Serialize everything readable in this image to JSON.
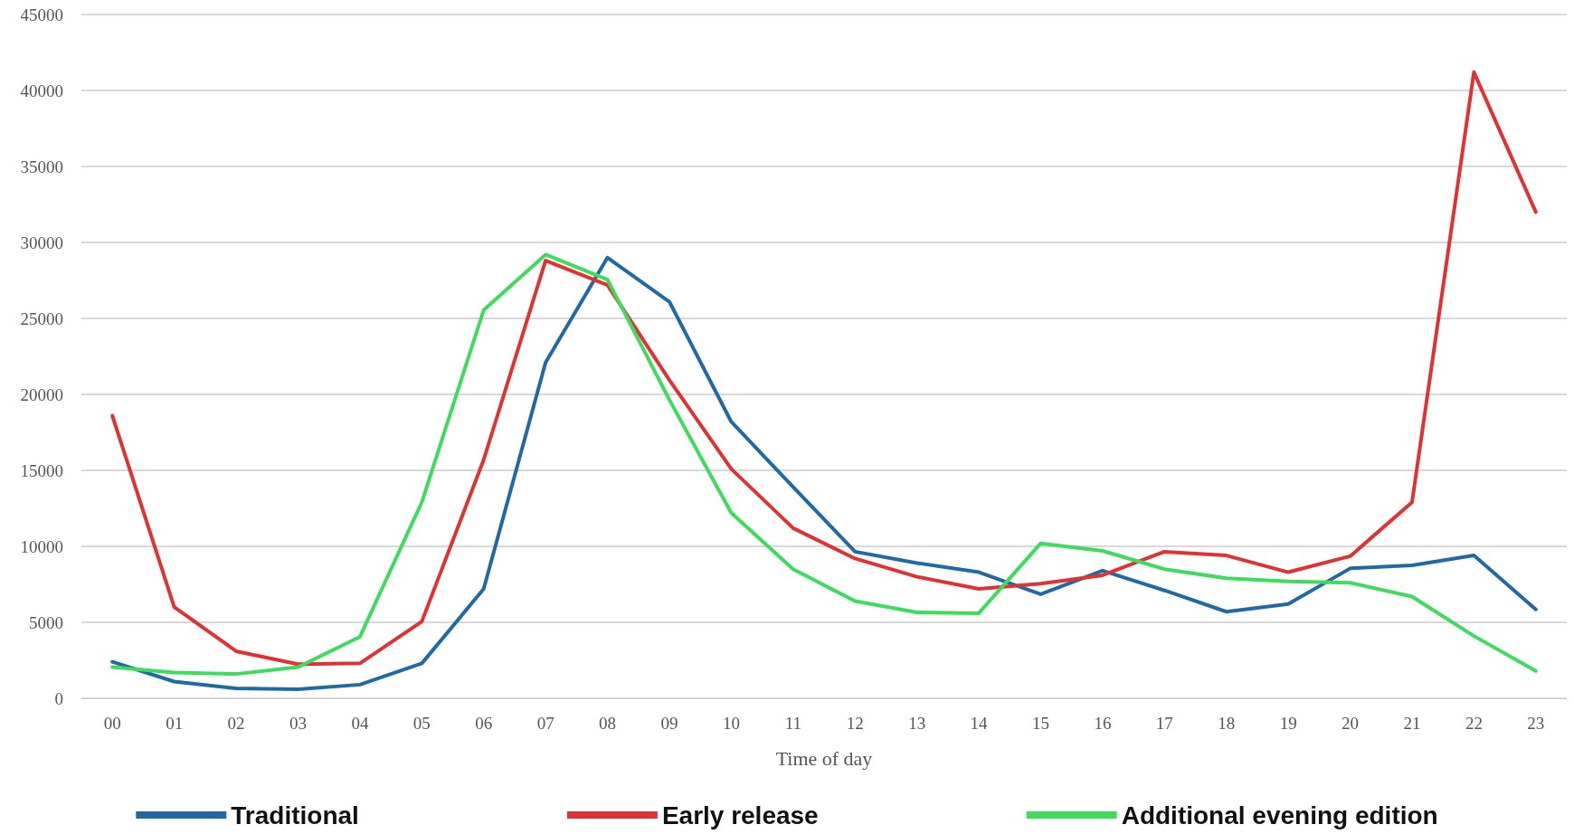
{
  "chart_data": {
    "type": "line",
    "xlabel": "Time of day",
    "categories": [
      "00",
      "01",
      "02",
      "03",
      "04",
      "05",
      "06",
      "07",
      "08",
      "09",
      "10",
      "11",
      "12",
      "13",
      "14",
      "15",
      "16",
      "17",
      "18",
      "19",
      "20",
      "21",
      "22",
      "23"
    ],
    "series": [
      {
        "name": "Traditional",
        "color": "#1f6aa5",
        "values": [
          2400,
          1100,
          650,
          600,
          900,
          2300,
          7200,
          22100,
          29000,
          26100,
          18200,
          13900,
          9650,
          8900,
          8300,
          6850,
          8400,
          7100,
          5700,
          6200,
          8550,
          8750,
          9400,
          5850
        ]
      },
      {
        "name": "Early release",
        "color": "#e03232",
        "values": [
          18600,
          6000,
          3100,
          2250,
          2300,
          5050,
          15700,
          28800,
          27200,
          20950,
          15100,
          11200,
          9200,
          8000,
          7200,
          7550,
          8100,
          9650,
          9400,
          8300,
          9350,
          12900,
          41200,
          32000
        ]
      },
      {
        "name": "Additional evening edition",
        "color": "#3ddc5c",
        "values": [
          2050,
          1700,
          1600,
          2050,
          4050,
          12900,
          25550,
          29200,
          27550,
          19650,
          12200,
          8500,
          6400,
          5650,
          5600,
          10200,
          9700,
          8500,
          7900,
          7700,
          7600,
          6700,
          4100,
          1800
        ]
      }
    ],
    "ylim": [
      0,
      45000
    ],
    "yticks": [
      0,
      5000,
      10000,
      15000,
      20000,
      25000,
      30000,
      35000,
      40000,
      45000
    ],
    "grid": "y",
    "legend": "bottom",
    "marker": "none",
    "line_style": "solid"
  }
}
